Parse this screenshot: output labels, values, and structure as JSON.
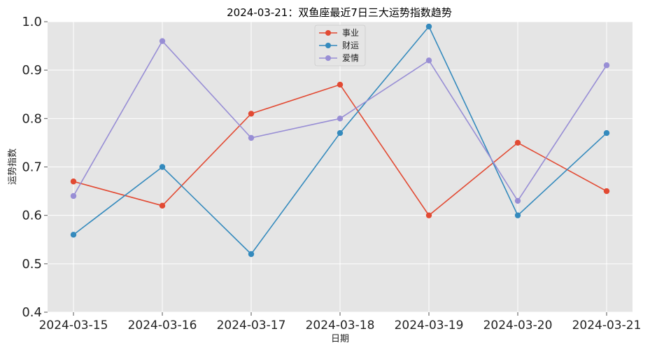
{
  "chart_data": {
    "type": "line",
    "title": "2024-03-21：双鱼座最近7日三大运势指数趋势",
    "xlabel": "日期",
    "ylabel": "运势指数",
    "categories": [
      "2024-03-15",
      "2024-03-16",
      "2024-03-17",
      "2024-03-18",
      "2024-03-19",
      "2024-03-20",
      "2024-03-21"
    ],
    "ylim": [
      0.4,
      1.0
    ],
    "yticks": [
      "0.4",
      "0.5",
      "0.6",
      "0.7",
      "0.8",
      "0.9",
      "1.0"
    ],
    "grid": true,
    "legend_position": "top-center",
    "series": [
      {
        "name": "事业",
        "color": "#E24A33",
        "values": [
          0.67,
          0.62,
          0.81,
          0.87,
          0.6,
          0.75,
          0.65
        ]
      },
      {
        "name": "财运",
        "color": "#348ABD",
        "values": [
          0.56,
          0.7,
          0.52,
          0.77,
          0.99,
          0.6,
          0.77
        ]
      },
      {
        "name": "爱情",
        "color": "#988ED5",
        "values": [
          0.64,
          0.96,
          0.76,
          0.8,
          0.92,
          0.63,
          0.91
        ]
      }
    ]
  }
}
